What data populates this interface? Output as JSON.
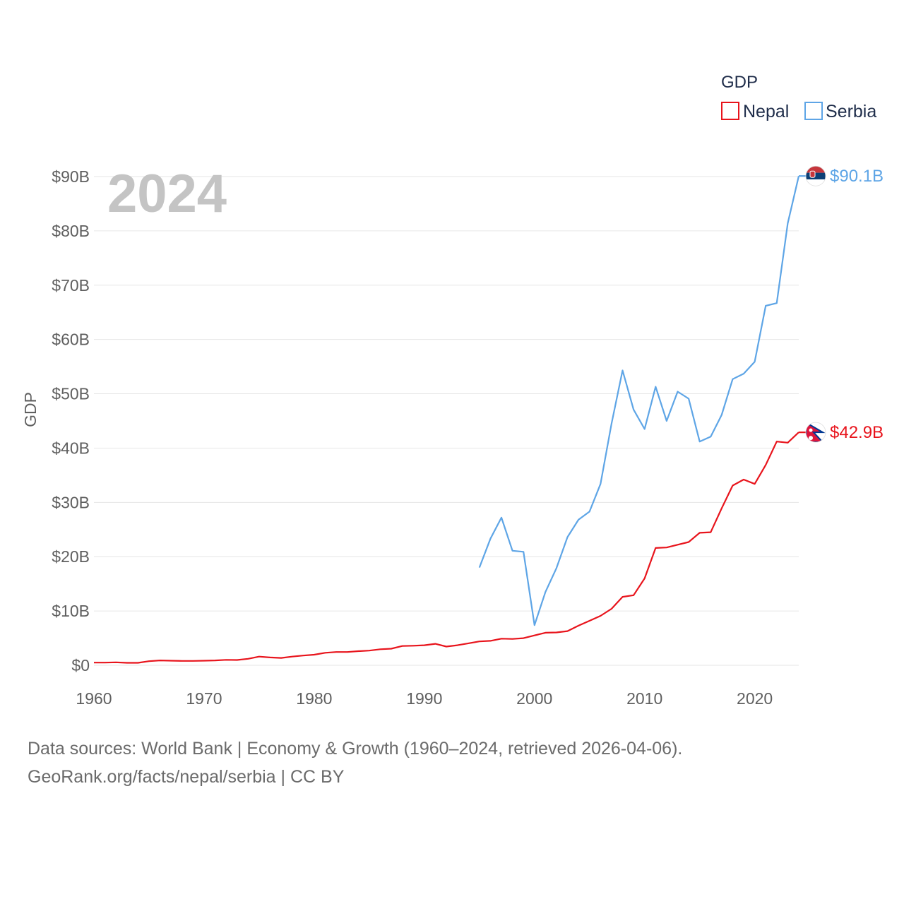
{
  "chart_data": {
    "type": "line",
    "title": "",
    "year_label": "2024",
    "xlabel": "",
    "ylabel": "GDP",
    "xlim": [
      1960,
      2024
    ],
    "ylim": [
      0,
      90
    ],
    "x_ticks": [
      1960,
      1970,
      1980,
      1990,
      2000,
      2010,
      2020
    ],
    "x_tick_labels": [
      "1960",
      "1970",
      "1980",
      "1990",
      "2000",
      "2010",
      "2020"
    ],
    "y_ticks": [
      0,
      10,
      20,
      30,
      40,
      50,
      60,
      70,
      80,
      90
    ],
    "y_tick_labels": [
      "$0",
      "$10B",
      "$20B",
      "$30B",
      "$40B",
      "$50B",
      "$60B",
      "$70B",
      "$80B",
      "$90B"
    ],
    "grid": true,
    "legend": {
      "title": "GDP",
      "position": "top-right",
      "entries": [
        "Nepal",
        "Serbia"
      ]
    },
    "series": [
      {
        "name": "Nepal",
        "color": "#e8141c",
        "end_label": "$42.9B",
        "flag": "nepal-flag-icon",
        "x": [
          1960,
          1961,
          1962,
          1963,
          1964,
          1965,
          1966,
          1967,
          1968,
          1969,
          1970,
          1971,
          1972,
          1973,
          1974,
          1975,
          1976,
          1977,
          1978,
          1979,
          1980,
          1981,
          1982,
          1983,
          1984,
          1985,
          1986,
          1987,
          1988,
          1989,
          1990,
          1991,
          1992,
          1993,
          1994,
          1995,
          1996,
          1997,
          1998,
          1999,
          2000,
          2001,
          2002,
          2003,
          2004,
          2005,
          2006,
          2007,
          2008,
          2009,
          2010,
          2011,
          2012,
          2013,
          2014,
          2015,
          2016,
          2017,
          2018,
          2019,
          2020,
          2021,
          2022,
          2023,
          2024
        ],
        "values": [
          0.5,
          0.5,
          0.55,
          0.45,
          0.45,
          0.75,
          0.9,
          0.85,
          0.8,
          0.8,
          0.85,
          0.9,
          1.0,
          0.98,
          1.2,
          1.6,
          1.45,
          1.35,
          1.6,
          1.8,
          1.95,
          2.3,
          2.45,
          2.45,
          2.6,
          2.7,
          2.95,
          3.05,
          3.55,
          3.6,
          3.7,
          3.95,
          3.45,
          3.7,
          4.05,
          4.4,
          4.5,
          4.9,
          4.85,
          5.0,
          5.5,
          6.0,
          6.05,
          6.3,
          7.3,
          8.2,
          9.1,
          10.4,
          12.6,
          12.9,
          16.0,
          21.6,
          21.7,
          22.2,
          22.7,
          24.4,
          24.5,
          28.9,
          33.1,
          34.2,
          33.4,
          36.9,
          41.2,
          41.0,
          42.9
        ]
      },
      {
        "name": "Serbia",
        "color": "#5ea5e6",
        "end_label": "$90.1B",
        "flag": "serbia-flag-icon",
        "x": [
          1995,
          1996,
          1997,
          1998,
          1999,
          2000,
          2001,
          2002,
          2003,
          2004,
          2005,
          2006,
          2007,
          2008,
          2009,
          2010,
          2011,
          2012,
          2013,
          2014,
          2015,
          2016,
          2017,
          2018,
          2019,
          2020,
          2021,
          2022,
          2023,
          2024
        ],
        "values": [
          18.0,
          23.3,
          27.2,
          21.1,
          20.9,
          7.4,
          13.5,
          17.9,
          23.6,
          26.8,
          28.3,
          33.4,
          44.5,
          54.3,
          47.1,
          43.5,
          51.3,
          45.0,
          50.4,
          49.1,
          41.2,
          42.1,
          46.1,
          52.7,
          53.7,
          55.9,
          66.2,
          66.7,
          81.4,
          90.1
        ]
      }
    ]
  },
  "footer": {
    "line1": "Data sources: World Bank | Economy & Growth (1960–2024, retrieved 2026-04-06).",
    "line2": "GeoRank.org/facts/nepal/serbia | CC BY"
  }
}
